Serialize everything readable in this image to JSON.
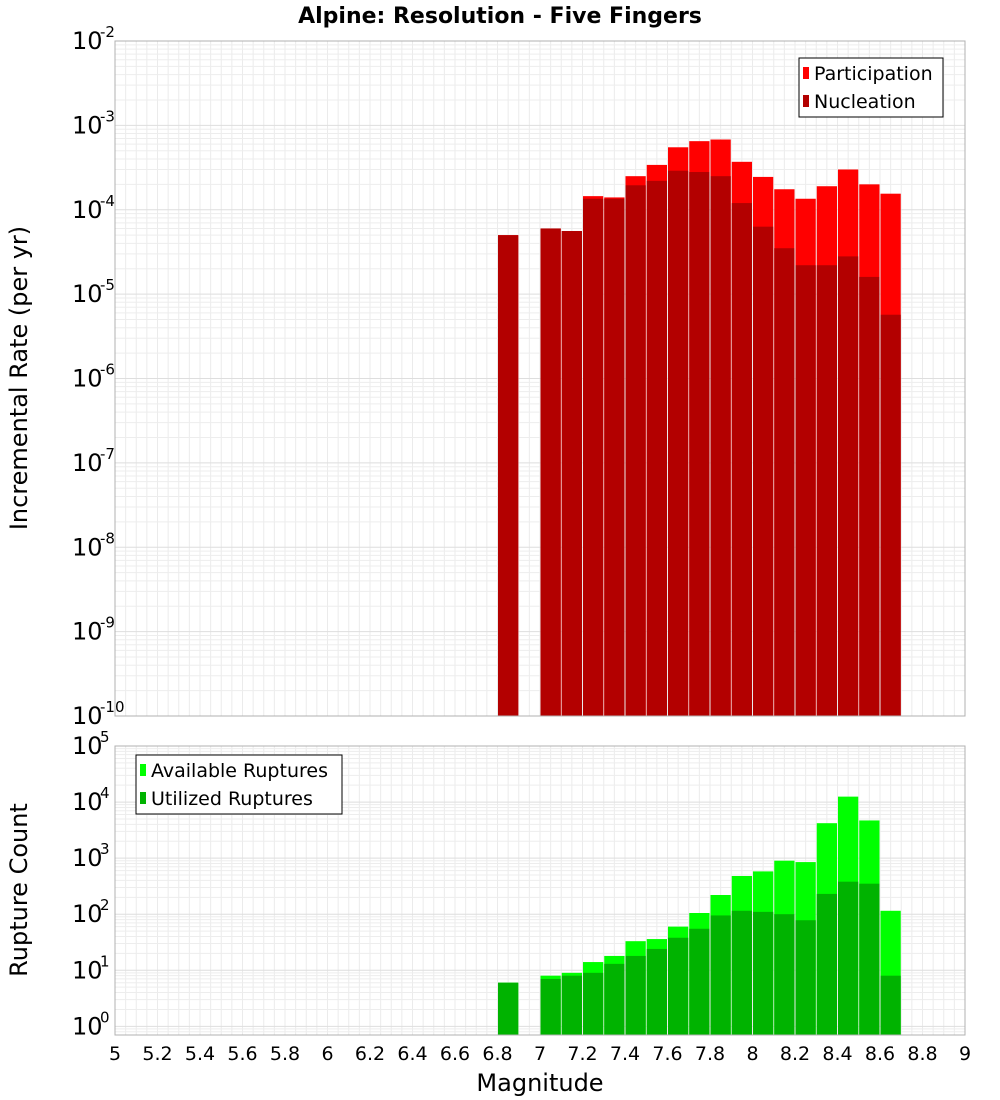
{
  "chart_data": [
    {
      "type": "bar",
      "title": "Alpine: Resolution - Five Fingers",
      "xlabel": "",
      "ylabel": "Incremental Rate (per yr)",
      "y_scale": "log",
      "ylim": [
        1e-10,
        0.01
      ],
      "xlim": [
        5,
        9
      ],
      "bin_width": 0.1,
      "grid": true,
      "legend_position": "top-right",
      "colors": {
        "Participation": "#ff0000",
        "Nucleation": "#b30000"
      },
      "x": [
        6.85,
        7.05,
        7.15,
        7.25,
        7.35,
        7.45,
        7.55,
        7.65,
        7.75,
        7.85,
        7.95,
        8.05,
        8.15,
        8.25,
        8.35,
        8.45,
        8.55,
        8.65
      ],
      "series": [
        {
          "name": "Participation",
          "values": [
            5e-05,
            6e-05,
            5.6e-05,
            0.000145,
            0.00014,
            0.00025,
            0.00034,
            0.00055,
            0.00065,
            0.00068,
            0.00037,
            0.000245,
            0.000175,
            0.000135,
            0.00019,
            0.0003,
            0.0002,
            0.000155
          ]
        },
        {
          "name": "Nucleation",
          "values": [
            5e-05,
            6e-05,
            5.6e-05,
            0.000135,
            0.000135,
            0.000195,
            0.00022,
            0.00029,
            0.00028,
            0.00025,
            0.00012,
            6.3e-05,
            3.5e-05,
            2.2e-05,
            2.2e-05,
            2.8e-05,
            1.6e-05,
            5.7e-06
          ]
        }
      ],
      "y_ticks": [
        {
          "base": "10",
          "exp": "-10"
        },
        {
          "base": "10",
          "exp": "-9"
        },
        {
          "base": "10",
          "exp": "-8"
        },
        {
          "base": "10",
          "exp": "-7"
        },
        {
          "base": "10",
          "exp": "-6"
        },
        {
          "base": "10",
          "exp": "-5"
        },
        {
          "base": "10",
          "exp": "-4"
        },
        {
          "base": "10",
          "exp": "-3"
        },
        {
          "base": "10",
          "exp": "-2"
        }
      ]
    },
    {
      "type": "bar",
      "title": "",
      "xlabel": "Magnitude",
      "ylabel": "Rupture Count",
      "y_scale": "log",
      "ylim": [
        0.7,
        100000
      ],
      "xlim": [
        5,
        9
      ],
      "bin_width": 0.1,
      "grid": true,
      "legend_position": "top-left",
      "colors": {
        "Available Ruptures": "#00ff00",
        "Utilized Ruptures": "#00b300"
      },
      "x": [
        6.85,
        7.05,
        7.15,
        7.25,
        7.35,
        7.45,
        7.55,
        7.65,
        7.75,
        7.85,
        7.95,
        8.05,
        8.15,
        8.25,
        8.35,
        8.45,
        8.55,
        8.65
      ],
      "series": [
        {
          "name": "Available Ruptures",
          "values": [
            6,
            8,
            9,
            14,
            18,
            33,
            36,
            60,
            105,
            220,
            480,
            580,
            900,
            850,
            4200,
            12500,
            4700,
            115
          ]
        },
        {
          "name": "Utilized Ruptures",
          "values": [
            6,
            7,
            8,
            9,
            13,
            18,
            24,
            38,
            55,
            95,
            115,
            110,
            100,
            78,
            230,
            380,
            350,
            8
          ]
        }
      ],
      "x_tick_labels": [
        "5",
        "5.2",
        "5.4",
        "5.6",
        "5.8",
        "6",
        "6.2",
        "6.4",
        "6.6",
        "6.8",
        "7",
        "7.2",
        "7.4",
        "7.6",
        "7.8",
        "8",
        "8.2",
        "8.4",
        "8.6",
        "8.8",
        "9"
      ],
      "y_ticks": [
        {
          "base": "10",
          "exp": "0"
        },
        {
          "base": "10",
          "exp": "1"
        },
        {
          "base": "10",
          "exp": "2"
        },
        {
          "base": "10",
          "exp": "3"
        },
        {
          "base": "10",
          "exp": "4"
        },
        {
          "base": "10",
          "exp": "5"
        }
      ]
    }
  ]
}
